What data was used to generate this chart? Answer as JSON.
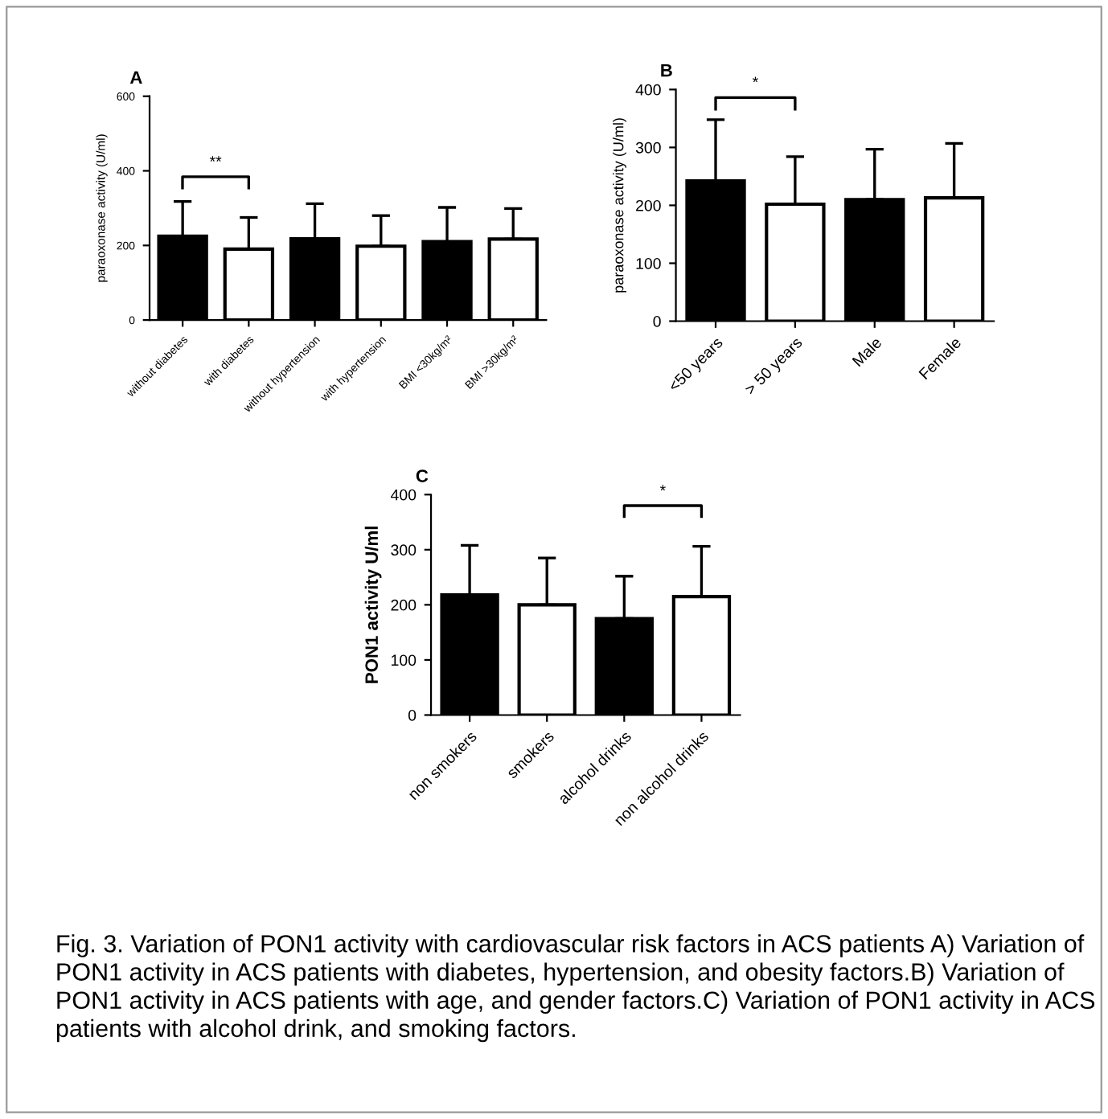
{
  "chart_data": [
    {
      "type": "bar",
      "title": "A",
      "ylabel": "paraoxonase activity (U/ml)",
      "categories": [
        "without diabetes",
        "with diabetes",
        "without hypertension",
        "with hypertension",
        "BMI <30kg/m²",
        "BMI >30kg/m²"
      ],
      "values": [
        225,
        190,
        218,
        198,
        210,
        217
      ],
      "colors": [
        "#000000",
        "#ffffff",
        "#000000",
        "#ffffff",
        "#000000",
        "#ffffff"
      ],
      "errors": [
        [
          225,
          318
        ],
        [
          190,
          275
        ],
        [
          218,
          312
        ],
        [
          198,
          280
        ],
        [
          210,
          302
        ],
        [
          217,
          299
        ]
      ],
      "ylim": [
        0,
        600
      ],
      "yticks": [
        0,
        200,
        400,
        600
      ],
      "grid": false,
      "legend": false,
      "annotations": [
        "**"
      ]
    },
    {
      "type": "bar",
      "title": "B",
      "ylabel": "paraoxonase activity (U/ml)",
      "categories": [
        "<50 years",
        "> 50 years",
        "Male",
        "Female"
      ],
      "values": [
        242,
        202,
        210,
        213
      ],
      "colors": [
        "#000000",
        "#ffffff",
        "#000000",
        "#ffffff"
      ],
      "errors": [
        [
          242,
          348
        ],
        [
          202,
          284
        ],
        [
          210,
          297
        ],
        [
          213,
          307
        ]
      ],
      "ylim": [
        0,
        400
      ],
      "yticks": [
        0,
        100,
        200,
        300,
        400
      ],
      "grid": false,
      "legend": false,
      "annotations": [
        "*"
      ]
    },
    {
      "type": "bar",
      "title": "C",
      "ylabel": "PON1 activity U/ml",
      "categories": [
        "non smokers",
        "smokers",
        "alcohol drinks",
        "non alcohol drinks"
      ],
      "values": [
        218,
        200,
        175,
        215
      ],
      "colors": [
        "#000000",
        "#ffffff",
        "#000000",
        "#ffffff"
      ],
      "errors": [
        [
          218,
          308
        ],
        [
          200,
          285
        ],
        [
          175,
          252
        ],
        [
          215,
          306
        ]
      ],
      "ylim": [
        0,
        400
      ],
      "yticks": [
        0,
        100,
        200,
        300,
        400
      ],
      "grid": false,
      "legend": false,
      "annotations": [
        "*",
        "Fig. 3. Variation of PON1 activity with cardiovascular risk factors in ACS patients A) Variation of PON1 activity in ACS patients with diabetes, hypertension, and obesity factors.B) Variation of PON1 activity in ACS patients with age, and gender factors.C) Variation of PON1 activity in ACS patients with alcohol drink, and smoking factors."
      ]
    }
  ]
}
